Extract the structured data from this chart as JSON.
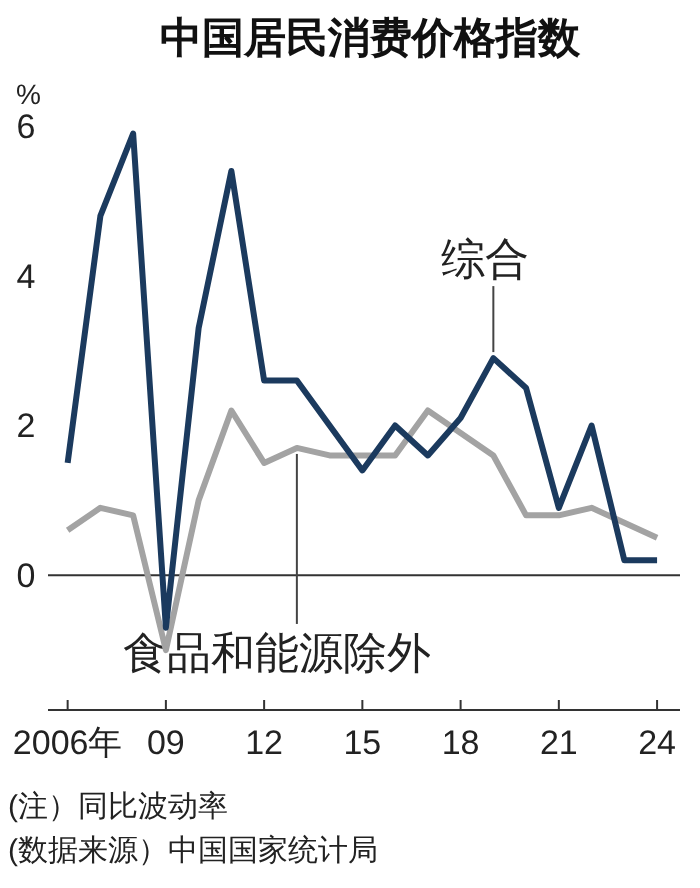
{
  "chart_data": {
    "type": "line",
    "title": "中国居民消费价格指数",
    "ylabel": "%",
    "x": [
      2006,
      2007,
      2008,
      2009,
      2010,
      2011,
      2012,
      2013,
      2014,
      2015,
      2016,
      2017,
      2018,
      2019,
      2020,
      2021,
      2022,
      2023,
      2024
    ],
    "series": [
      {
        "color": "#1b3a5e",
        "values": [
          1.5,
          4.8,
          5.9,
          -0.7,
          3.3,
          5.4,
          2.6,
          2.6,
          2.0,
          1.4,
          2.0,
          1.6,
          2.1,
          2.9,
          2.5,
          0.9,
          2.0,
          0.2,
          0.2
        ]
      },
      {
        "color": "#a3a3a3",
        "values": [
          0.6,
          0.9,
          0.8,
          -1.0,
          1.0,
          2.2,
          1.5,
          1.7,
          1.6,
          1.6,
          1.6,
          2.2,
          1.9,
          1.6,
          0.8,
          0.8,
          0.9,
          0.7,
          0.5
        ]
      }
    ],
    "xlim": [
      2005.4,
      2024.7
    ],
    "ylim": [
      -1.8,
      6
    ],
    "xticks": [
      {
        "value": 2006,
        "label": "2006年"
      },
      {
        "value": 2009,
        "label": "09"
      },
      {
        "value": 2012,
        "label": "12"
      },
      {
        "value": 2015,
        "label": "15"
      },
      {
        "value": 2018,
        "label": "18"
      },
      {
        "value": 2021,
        "label": "21"
      },
      {
        "value": 2024,
        "label": "24"
      }
    ],
    "yticks": [
      0,
      2,
      4,
      6
    ],
    "ref_lines": [
      {
        "axis": "y",
        "value": 0,
        "color": "#333333"
      }
    ],
    "grid": false,
    "marker": "none",
    "line_style": "solid",
    "annotations": [
      {
        "text": "综合",
        "x": 2019,
        "y": 2.9
      },
      {
        "text": "食品和能源除外",
        "x": 2013,
        "y": 1.7
      },
      "(注）同比波动率",
      "(数据来源）中国国家统计局"
    ]
  }
}
